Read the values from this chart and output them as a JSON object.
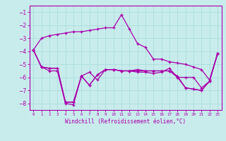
{
  "xlabel": "Windchill (Refroidissement éolien,°C)",
  "ylabel": "",
  "bg_color": "#c8ecec",
  "line_color": "#aa00aa",
  "grid_color": "#b0dede",
  "xlim": [
    -0.5,
    23.5
  ],
  "ylim": [
    -8.5,
    -0.5
  ],
  "yticks": [
    -8,
    -7,
    -6,
    -5,
    -4,
    -3,
    -2,
    -1
  ],
  "xticks": [
    0,
    1,
    2,
    3,
    4,
    5,
    6,
    7,
    8,
    9,
    10,
    11,
    12,
    13,
    14,
    15,
    16,
    17,
    18,
    19,
    20,
    21,
    22,
    23
  ],
  "lines": [
    {
      "x": [
        0,
        1,
        2,
        3,
        4,
        5,
        6,
        7,
        8,
        9,
        10,
        11,
        12,
        13,
        14,
        15,
        16,
        17,
        18,
        19,
        20,
        21,
        22,
        23
      ],
      "y": [
        -3.9,
        -3.0,
        -2.8,
        -2.7,
        -2.6,
        -2.5,
        -2.5,
        -2.4,
        -2.3,
        -2.2,
        -2.2,
        -1.2,
        -2.3,
        -3.4,
        -3.7,
        -4.6,
        -4.6,
        -4.8,
        -4.9,
        -5.0,
        -5.2,
        -5.4,
        -6.2,
        -4.2
      ]
    },
    {
      "x": [
        0,
        1,
        2,
        3,
        4,
        5,
        6,
        7,
        8,
        9,
        10,
        11,
        12,
        13,
        14,
        15,
        16,
        17,
        18,
        19,
        20,
        21,
        22,
        23
      ],
      "y": [
        -3.9,
        -5.2,
        -5.3,
        -5.3,
        -7.9,
        -7.9,
        -5.9,
        -5.6,
        -6.2,
        -5.4,
        -5.4,
        -5.5,
        -5.5,
        -5.6,
        -5.6,
        -5.7,
        -5.6,
        -5.3,
        -6.0,
        -6.0,
        -6.0,
        -6.8,
        -6.3,
        -4.2
      ]
    },
    {
      "x": [
        0,
        1,
        2,
        3,
        4,
        5,
        6,
        7,
        8,
        9,
        10,
        11,
        12,
        13,
        14,
        15,
        16,
        17,
        18,
        19,
        20,
        21,
        22,
        23
      ],
      "y": [
        -3.9,
        -5.2,
        -5.3,
        -5.3,
        -7.9,
        -7.9,
        -5.9,
        -6.6,
        -5.8,
        -5.4,
        -5.4,
        -5.5,
        -5.5,
        -5.5,
        -5.5,
        -5.5,
        -5.5,
        -5.5,
        -6.0,
        -6.8,
        -6.9,
        -7.0,
        -6.3,
        -4.2
      ]
    },
    {
      "x": [
        0,
        1,
        2,
        3,
        4,
        5,
        6,
        7,
        8,
        9,
        10,
        11,
        12,
        13,
        14,
        15,
        16,
        17,
        18,
        19,
        20,
        21,
        22,
        23
      ],
      "y": [
        -3.9,
        -5.2,
        -5.5,
        -5.5,
        -8.0,
        -8.1,
        -5.9,
        -6.6,
        -5.8,
        -5.4,
        -5.4,
        -5.5,
        -5.5,
        -5.4,
        -5.5,
        -5.5,
        -5.5,
        -5.5,
        -5.9,
        -6.8,
        -6.9,
        -7.0,
        -6.3,
        -4.2
      ]
    }
  ]
}
